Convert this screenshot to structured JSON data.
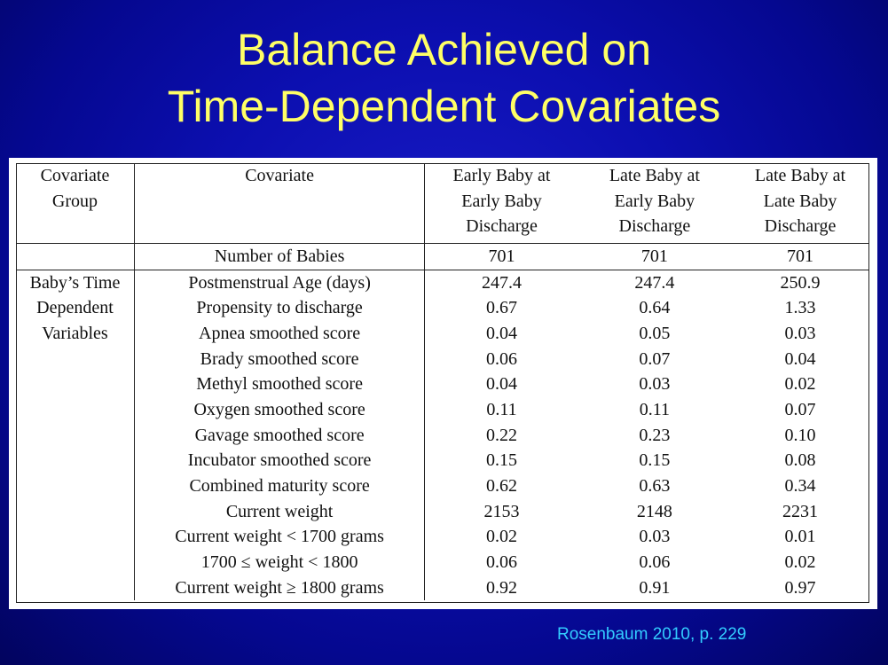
{
  "slide": {
    "title_line1": "Balance Achieved on",
    "title_line2": "Time-Dependent Covariates",
    "citation": "Rosenbaum 2010, p. 229"
  },
  "table": {
    "headers": {
      "group": [
        "Covariate",
        "Group"
      ],
      "covariate": "Covariate",
      "col1": [
        "Early Baby at",
        "Early Baby",
        "Discharge"
      ],
      "col2": [
        "Late Baby at",
        "Early Baby",
        "Discharge"
      ],
      "col3": [
        "Late Baby at",
        "Late Baby",
        "Discharge"
      ]
    },
    "number_row": {
      "label": "Number of Babies",
      "values": [
        "701",
        "701",
        "701"
      ]
    },
    "group_label": [
      "Baby’s Time",
      "Dependent",
      "Variables"
    ],
    "rows": [
      {
        "covariate": "Postmenstrual Age (days)",
        "values": [
          "247.4",
          "247.4",
          "250.9"
        ]
      },
      {
        "covariate": "Propensity to discharge",
        "values": [
          "0.67",
          "0.64",
          "1.33"
        ]
      },
      {
        "covariate": "Apnea smoothed score",
        "values": [
          "0.04",
          "0.05",
          "0.03"
        ]
      },
      {
        "covariate": "Brady smoothed score",
        "values": [
          "0.06",
          "0.07",
          "0.04"
        ]
      },
      {
        "covariate": "Methyl smoothed score",
        "values": [
          "0.04",
          "0.03",
          "0.02"
        ]
      },
      {
        "covariate": "Oxygen smoothed score",
        "values": [
          "0.11",
          "0.11",
          "0.07"
        ]
      },
      {
        "covariate": "Gavage smoothed score",
        "values": [
          "0.22",
          "0.23",
          "0.10"
        ]
      },
      {
        "covariate": "Incubator smoothed score",
        "values": [
          "0.15",
          "0.15",
          "0.08"
        ]
      },
      {
        "covariate": "Combined maturity score",
        "values": [
          "0.62",
          "0.63",
          "0.34"
        ]
      },
      {
        "covariate": "Current weight",
        "values": [
          "2153",
          "2148",
          "2231"
        ]
      },
      {
        "covariate": "Current weight < 1700 grams",
        "values": [
          "0.02",
          "0.03",
          "0.01"
        ]
      },
      {
        "covariate": "1700 ≤ weight < 1800",
        "values": [
          "0.06",
          "0.06",
          "0.02"
        ]
      },
      {
        "covariate": "Current weight ≥ 1800 grams",
        "values": [
          "0.92",
          "0.91",
          "0.97"
        ]
      }
    ]
  },
  "colors": {
    "background": "#0c0fb0",
    "title": "#ffff66",
    "citation": "#33ccff",
    "table_bg": "#ffffff"
  }
}
